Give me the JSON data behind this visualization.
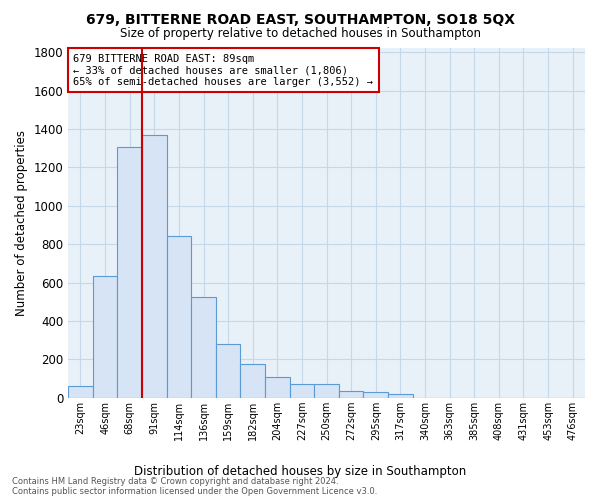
{
  "title1": "679, BITTERNE ROAD EAST, SOUTHAMPTON, SO18 5QX",
  "title2": "Size of property relative to detached houses in Southampton",
  "xlabel": "Distribution of detached houses by size in Southampton",
  "ylabel": "Number of detached properties",
  "categories": [
    "23sqm",
    "46sqm",
    "68sqm",
    "91sqm",
    "114sqm",
    "136sqm",
    "159sqm",
    "182sqm",
    "204sqm",
    "227sqm",
    "250sqm",
    "272sqm",
    "295sqm",
    "317sqm",
    "340sqm",
    "363sqm",
    "385sqm",
    "408sqm",
    "431sqm",
    "453sqm",
    "476sqm"
  ],
  "values": [
    60,
    635,
    1305,
    1370,
    840,
    525,
    280,
    175,
    110,
    70,
    70,
    35,
    30,
    20,
    0,
    0,
    0,
    0,
    0,
    0,
    0
  ],
  "bar_color": "#d6e4f5",
  "bar_edge_color": "#5b9bd5",
  "vline_x_idx": 3,
  "vline_color": "#cc0000",
  "annotation_line1": "679 BITTERNE ROAD EAST: 89sqm",
  "annotation_line2": "← 33% of detached houses are smaller (1,806)",
  "annotation_line3": "65% of semi-detached houses are larger (3,552) →",
  "annotation_box_edgecolor": "#cc0000",
  "ylim_max": 1820,
  "yticks": [
    0,
    200,
    400,
    600,
    800,
    1000,
    1200,
    1400,
    1600,
    1800
  ],
  "grid_color": "#c5d8ea",
  "plot_bg_color": "#e8f0f8",
  "footer1": "Contains HM Land Registry data © Crown copyright and database right 2024.",
  "footer2": "Contains public sector information licensed under the Open Government Licence v3.0."
}
